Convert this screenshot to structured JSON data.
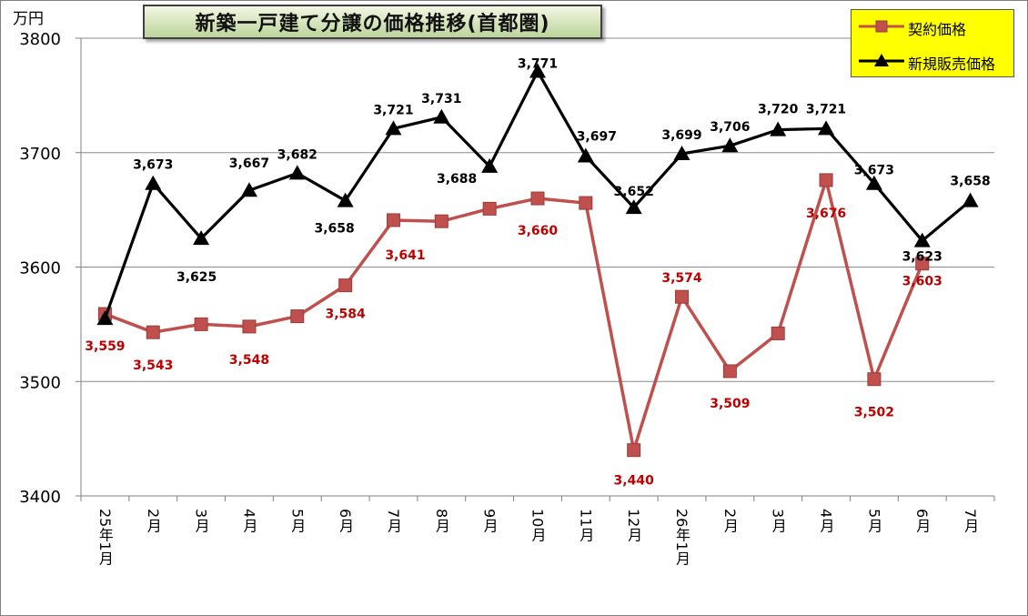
{
  "chart_data": {
    "type": "line",
    "title": "新築一戸建て分譲の価格推移(首都圏)",
    "unit_label": "万円",
    "ylim": [
      3400,
      3800
    ],
    "yticks": [
      3400,
      3500,
      3600,
      3700,
      3800
    ],
    "categories": [
      "25年1月",
      "2月",
      "3月",
      "4月",
      "5月",
      "6月",
      "7月",
      "8月",
      "9月",
      "10月",
      "11月",
      "12月",
      "26年1月",
      "2月",
      "3月",
      "4月",
      "5月",
      "6月",
      "7月"
    ],
    "grid": true,
    "legend_position": "top-right",
    "series": [
      {
        "name": "契約価格",
        "color": "#c0504d",
        "label_color": "#c00000",
        "marker": "square",
        "values": [
          3559,
          3543,
          3550,
          3548,
          3557,
          3584,
          3641,
          3640,
          3651,
          3660,
          3656,
          3440,
          3574,
          3509,
          3542,
          3676,
          3502,
          3603,
          null
        ],
        "labels": [
          "3,559",
          "3,543",
          "",
          "3,548",
          "",
          "3,584",
          "3,641",
          "",
          "",
          "3,660",
          "",
          "3,440",
          "3,574",
          "3,509",
          "",
          "3,676",
          "3,502",
          "3,603",
          ""
        ]
      },
      {
        "name": "新規販売価格",
        "color": "#000000",
        "label_color": "#000000",
        "marker": "triangle",
        "values": [
          3555,
          3673,
          3625,
          3667,
          3682,
          3658,
          3721,
          3731,
          3688,
          3771,
          3697,
          3652,
          3699,
          3706,
          3720,
          3721,
          3673,
          3623,
          3658
        ],
        "labels": [
          "",
          "3,673",
          "3,625",
          "3,667",
          "3,682",
          "3,658",
          "3,721",
          "3,731",
          "3,688",
          "3,771",
          "3,697",
          "3,652",
          "3,699",
          "3,706",
          "3,720",
          "3,721",
          "3,673",
          "3,623",
          "3,658"
        ]
      }
    ]
  }
}
